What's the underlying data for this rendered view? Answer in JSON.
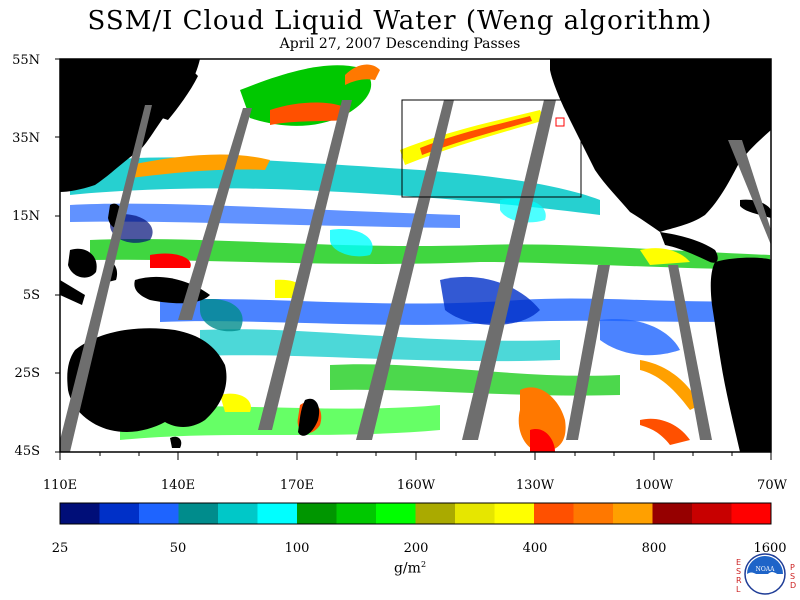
{
  "title": "SSM/I Cloud Liquid Water (Weng algorithm)",
  "subtitle": "April 27, 2007  Descending Passes",
  "map": {
    "lat_labels": [
      "55N",
      "35N",
      "15N",
      "5S",
      "25S",
      "45S"
    ],
    "lon_labels": [
      "110E",
      "140E",
      "170E",
      "160W",
      "130W",
      "100W",
      "70W"
    ],
    "land_color": "#000000",
    "nodata_color": "#6e6e6e",
    "clear_color": "#ffffff"
  },
  "colorbar": {
    "labels": [
      "25",
      "50",
      "100",
      "200",
      "400",
      "800",
      "1600"
    ],
    "unit_base": "g/m",
    "unit_exp": "2",
    "colors": [
      "#000e78",
      "#0030c8",
      "#1e64ff",
      "#008c8c",
      "#00c8c8",
      "#00ffff",
      "#009600",
      "#00c800",
      "#00ff00",
      "#aaaa00",
      "#e6e600",
      "#ffff00",
      "#ff5000",
      "#ff7800",
      "#ffa000",
      "#960000",
      "#c80000",
      "#ff0000"
    ]
  },
  "logo": {
    "esrl": "ESRL",
    "psd": "PSD",
    "noaa": "NOAA"
  }
}
